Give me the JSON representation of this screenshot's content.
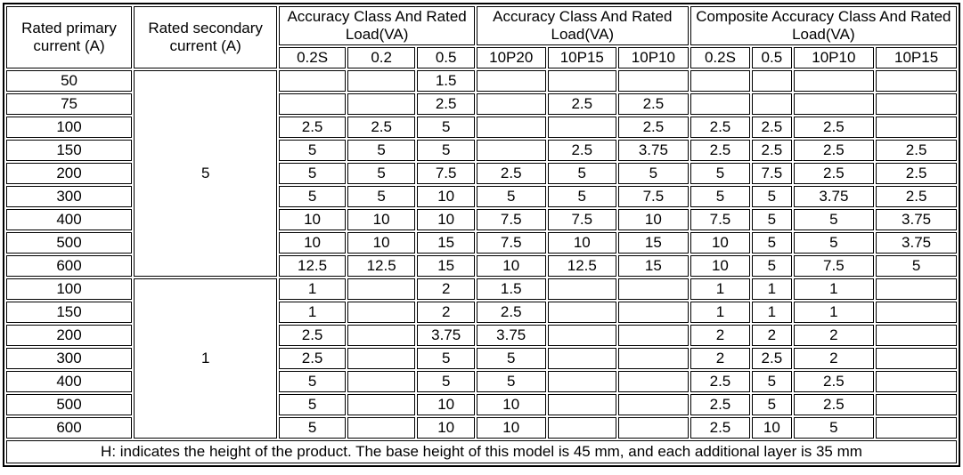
{
  "table": {
    "header": {
      "col_primary": "Rated primary current (A)",
      "col_secondary": "Rated secondary current (A)",
      "groups": [
        {
          "label": "Accuracy Class And Rated Load(VA)",
          "cols": [
            "0.2S",
            "0.2",
            "0.5"
          ]
        },
        {
          "label": "Accuracy Class And Rated Load(VA)",
          "cols": [
            "10P20",
            "10P15",
            "10P10"
          ]
        },
        {
          "label": "Composite Accuracy Class And Rated Load(VA)",
          "cols": [
            "0.2S",
            "0.5",
            "10P10",
            "10P15"
          ]
        }
      ]
    },
    "blocks": [
      {
        "secondary": "5",
        "rows": [
          {
            "primary": "50",
            "values": [
              "",
              "",
              "1.5",
              "",
              "",
              "",
              "",
              "",
              "",
              ""
            ]
          },
          {
            "primary": "75",
            "values": [
              "",
              "",
              "2.5",
              "",
              "2.5",
              "2.5",
              "",
              "",
              "",
              ""
            ]
          },
          {
            "primary": "100",
            "values": [
              "2.5",
              "2.5",
              "5",
              "",
              "",
              "2.5",
              "2.5",
              "2.5",
              "2.5",
              ""
            ]
          },
          {
            "primary": "150",
            "values": [
              "5",
              "5",
              "5",
              "",
              "2.5",
              "3.75",
              "2.5",
              "2.5",
              "2.5",
              "2.5"
            ]
          },
          {
            "primary": "200",
            "values": [
              "5",
              "5",
              "7.5",
              "2.5",
              "5",
              "5",
              "5",
              "7.5",
              "2.5",
              "2.5"
            ]
          },
          {
            "primary": "300",
            "values": [
              "5",
              "5",
              "10",
              "5",
              "5",
              "7.5",
              "5",
              "5",
              "3.75",
              "2.5"
            ]
          },
          {
            "primary": "400",
            "values": [
              "10",
              "10",
              "10",
              "7.5",
              "7.5",
              "10",
              "7.5",
              "5",
              "5",
              "3.75"
            ]
          },
          {
            "primary": "500",
            "values": [
              "10",
              "10",
              "15",
              "7.5",
              "10",
              "15",
              "10",
              "5",
              "5",
              "3.75"
            ]
          },
          {
            "primary": "600",
            "values": [
              "12.5",
              "12.5",
              "15",
              "10",
              "12.5",
              "15",
              "10",
              "5",
              "7.5",
              "5"
            ]
          }
        ]
      },
      {
        "secondary": "1",
        "rows": [
          {
            "primary": "100",
            "values": [
              "1",
              "",
              "2",
              "1.5",
              "",
              "",
              "1",
              "1",
              "1",
              ""
            ]
          },
          {
            "primary": "150",
            "values": [
              "1",
              "",
              "2",
              "2.5",
              "",
              "",
              "1",
              "1",
              "1",
              ""
            ]
          },
          {
            "primary": "200",
            "values": [
              "2.5",
              "",
              "3.75",
              "3.75",
              "",
              "",
              "2",
              "2",
              "2",
              ""
            ]
          },
          {
            "primary": "300",
            "values": [
              "2.5",
              "",
              "5",
              "5",
              "",
              "",
              "2",
              "2.5",
              "2",
              ""
            ]
          },
          {
            "primary": "400",
            "values": [
              "5",
              "",
              "5",
              "5",
              "",
              "",
              "2.5",
              "5",
              "2.5",
              ""
            ]
          },
          {
            "primary": "500",
            "values": [
              "5",
              "",
              "10",
              "10",
              "",
              "",
              "2.5",
              "5",
              "2.5",
              ""
            ]
          },
          {
            "primary": "600",
            "values": [
              "5",
              "",
              "10",
              "10",
              "",
              "",
              "2.5",
              "10",
              "5",
              ""
            ]
          }
        ]
      }
    ],
    "footer": "H: indicates the height of the product. The base height of this model is 45 mm, and each additional layer is 35 mm"
  }
}
